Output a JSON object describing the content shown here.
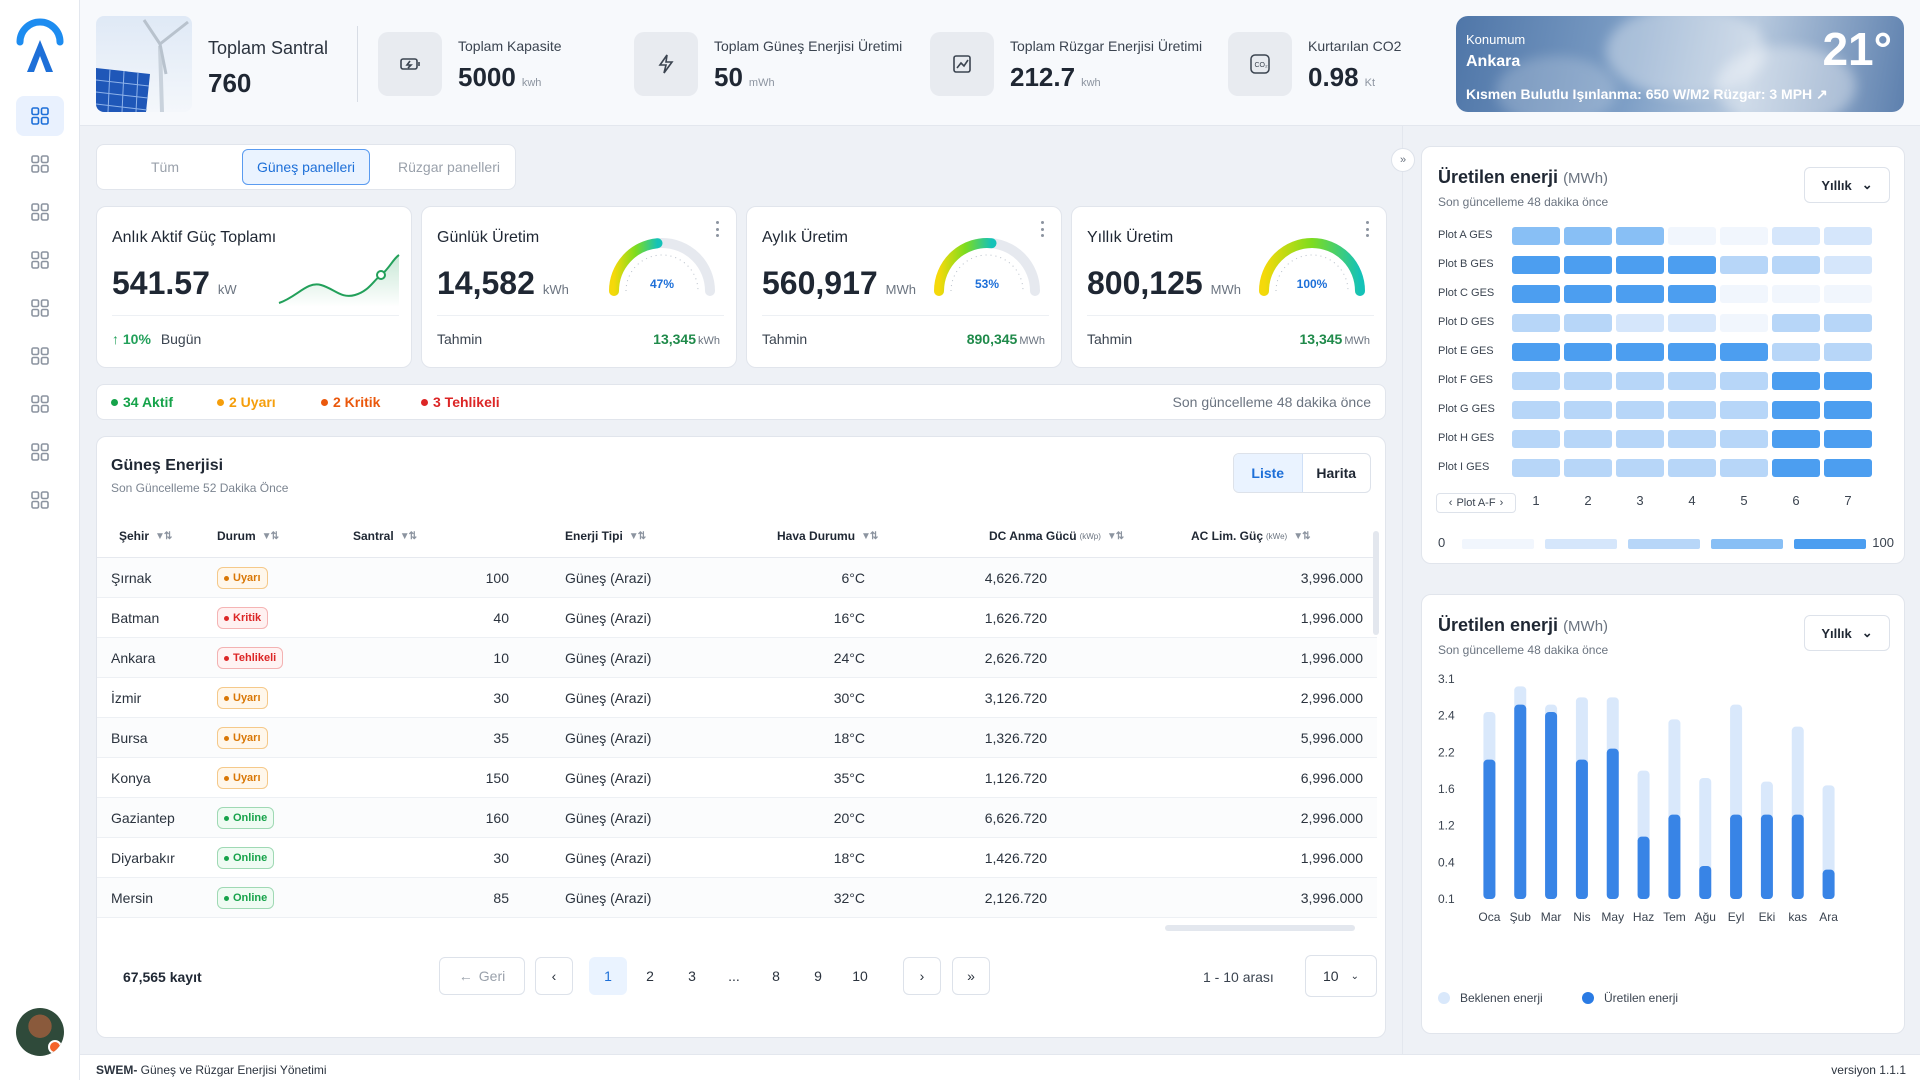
{
  "topbar": {
    "plant": {
      "label": "Toplam Santral",
      "value": "760"
    },
    "capacity": {
      "label": "Toplam Kapasite",
      "value": "5000",
      "unit": "kwh"
    },
    "solar": {
      "label": "Toplam Güneş Enerjisi Üretimi",
      "value": "50",
      "unit": "mWh"
    },
    "wind": {
      "label": "Toplam Rüzgar Enerjisi Üretimi",
      "value": "212.7",
      "unit": "kwh"
    },
    "co2": {
      "label": "Kurtarılan CO2",
      "value": "0.98",
      "unit": "Kt"
    },
    "weather": {
      "location_label": "Konumum",
      "city": "Ankara",
      "temp": "21°",
      "details": "Kısmen Bulutlu Işınlanma: 650 W/M2 Rüzgar: 3 MPH ↗"
    }
  },
  "tabs": [
    "Tüm",
    "Güneş panelleri",
    "Rüzgar panelleri"
  ],
  "kpis": {
    "power": {
      "title": "Anlık Aktif Güç Toplamı",
      "value": "541.57",
      "unit": "kW",
      "change": "10%",
      "period": "Bugün"
    },
    "daily": {
      "title": "Günlük Üretim",
      "value": "14,582",
      "unit": "kWh",
      "pct": "47%",
      "pct_value": 0.47,
      "forecast_label": "Tahmin",
      "forecast": "13,345",
      "forecast_unit": "kWh"
    },
    "monthly": {
      "title": "Aylık Üretim",
      "value": "560,917",
      "unit": "MWh",
      "pct": "53%",
      "pct_value": 0.53,
      "forecast_label": "Tahmin",
      "forecast": "890,345",
      "forecast_unit": "MWh"
    },
    "yearly": {
      "title": "Yıllık Üretim",
      "value": "800,125",
      "unit": "MWh",
      "pct": "100%",
      "pct_value": 1.0,
      "forecast_label": "Tahmin",
      "forecast": "13,345",
      "forecast_unit": "MWh"
    }
  },
  "status": {
    "active": "34 Aktif",
    "warning": "2 Uyarı",
    "critical": "2 Kritik",
    "danger": "3 Tehlikeli",
    "updated": "Son güncelleme 48 dakika önce",
    "colors": {
      "active": "#16a34a",
      "warning": "#f59e0b",
      "critical": "#ea580c",
      "danger": "#dc2626"
    }
  },
  "table": {
    "title": "Güneş Enerjisi",
    "subtitle": "Son Güncelleme 52 Dakika Önce",
    "view_list": "Liste",
    "view_map": "Harita",
    "headers": {
      "city": "Şehir",
      "status": "Durum",
      "plant": "Santral",
      "energy_type": "Enerji Tipi",
      "weather": "Hava Durumu",
      "dc": "DC Anma Gücü",
      "dc_unit": "(kWp)",
      "ac": "AC Lim. Güç",
      "ac_unit": "(kWe)"
    },
    "rows": [
      {
        "city": "Şırnak",
        "status": "Uyarı",
        "kind": "warn",
        "plant": "100",
        "type": "Güneş (Arazi)",
        "weather": "6°C",
        "dc": "4,626.720",
        "ac": "3,996.000"
      },
      {
        "city": "Batman",
        "status": "Kritik",
        "kind": "crit",
        "plant": "40",
        "type": "Güneş (Arazi)",
        "weather": "16°C",
        "dc": "1,626.720",
        "ac": "1,996.000"
      },
      {
        "city": "Ankara",
        "status": "Tehlikeli",
        "kind": "danger",
        "plant": "10",
        "type": "Güneş (Arazi)",
        "weather": "24°C",
        "dc": "2,626.720",
        "ac": "1,996.000"
      },
      {
        "city": "İzmir",
        "status": "Uyarı",
        "kind": "warn",
        "plant": "30",
        "type": "Güneş (Arazi)",
        "weather": "30°C",
        "dc": "3,126.720",
        "ac": "2,996.000"
      },
      {
        "city": "Bursa",
        "status": "Uyarı",
        "kind": "warn",
        "plant": "35",
        "type": "Güneş (Arazi)",
        "weather": "18°C",
        "dc": "1,326.720",
        "ac": "5,996.000"
      },
      {
        "city": "Konya",
        "status": "Uyarı",
        "kind": "warn",
        "plant": "150",
        "type": "Güneş (Arazi)",
        "weather": "35°C",
        "dc": "1,126.720",
        "ac": "6,996.000"
      },
      {
        "city": "Gaziantep",
        "status": "Online",
        "kind": "ok",
        "plant": "160",
        "type": "Güneş (Arazi)",
        "weather": "20°C",
        "dc": "6,626.720",
        "ac": "2,996.000"
      },
      {
        "city": "Diyarbakır",
        "status": "Online",
        "kind": "ok",
        "plant": "30",
        "type": "Güneş (Arazi)",
        "weather": "18°C",
        "dc": "1,426.720",
        "ac": "1,996.000"
      },
      {
        "city": "Mersin",
        "status": "Online",
        "kind": "ok",
        "plant": "85",
        "type": "Güneş (Arazi)",
        "weather": "32°C",
        "dc": "2,126.720",
        "ac": "3,996.000"
      }
    ],
    "record_count": "67,565 kayıt",
    "pagination": {
      "prev": "Geri",
      "pages": [
        "1",
        "2",
        "3",
        "...",
        "8",
        "9",
        "10"
      ],
      "range": "1 - 10 arası",
      "page_size": "10"
    }
  },
  "heatmap": {
    "title": "Üretilen enerji",
    "unit": "(MWh)",
    "subtitle": "Son güncelleme 48 dakika önce",
    "period": "Yıllık",
    "rows": [
      "Plot A GES",
      "Plot B GES",
      "Plot C GES",
      "Plot D GES",
      "Plot E GES",
      "Plot F GES",
      "Plot G GES",
      "Plot H GES",
      "Plot I GES"
    ],
    "cols": [
      "1",
      "2",
      "3",
      "4",
      "5",
      "6",
      "7"
    ],
    "levels": [
      [
        3,
        3,
        3,
        0,
        0,
        1,
        1
      ],
      [
        4,
        4,
        4,
        4,
        2,
        2,
        1
      ],
      [
        4,
        4,
        4,
        4,
        0,
        0,
        0
      ],
      [
        2,
        2,
        1,
        1,
        0,
        2,
        2
      ],
      [
        4,
        4,
        4,
        4,
        4,
        2,
        2
      ],
      [
        2,
        2,
        2,
        2,
        2,
        4,
        4
      ],
      [
        2,
        2,
        2,
        2,
        2,
        4,
        4
      ],
      [
        2,
        2,
        2,
        2,
        2,
        4,
        4
      ],
      [
        2,
        2,
        2,
        2,
        2,
        4,
        4
      ]
    ],
    "nav_label": "Plot A-F",
    "legend_min": "0",
    "legend_max": "100",
    "colors": [
      "#f1f6fd",
      "#d5e6fb",
      "#b7d6f8",
      "#88bff5",
      "#4c9ef0"
    ]
  },
  "chart_data": {
    "type": "bar",
    "title": "Üretilen enerji",
    "unit": "(MWh)",
    "subtitle": "Son güncelleme 48 dakika önce",
    "period": "Yıllık",
    "categories": [
      "Oca",
      "Şub",
      "Mar",
      "Nis",
      "May",
      "Haz",
      "Tem",
      "Ağu",
      "Eyl",
      "Eki",
      "kas",
      "Ara"
    ],
    "y_ticks": [
      "3.1",
      "2.4",
      "2.2",
      "1.6",
      "1.2",
      "0.4",
      "0.1"
    ],
    "series": [
      {
        "name": "Beklenen enerji",
        "values": [
          2.65,
          3.0,
          2.75,
          2.85,
          2.85,
          1.85,
          2.55,
          1.75,
          2.75,
          1.7,
          2.45,
          1.65
        ]
      },
      {
        "name": "Üretilen enerji",
        "values": [
          2.0,
          2.75,
          2.65,
          2.0,
          2.15,
          0.95,
          1.25,
          0.55,
          1.25,
          1.25,
          1.25,
          0.5
        ]
      }
    ],
    "colors": {
      "expected": "#d9e8fb",
      "produced": "#2a7be4"
    }
  },
  "footer": {
    "brand": "SWEM-",
    "tagline": " Güneş ve Rüzgar Enerjisi Yönetimi",
    "version": "versiyon 1.1.1"
  }
}
